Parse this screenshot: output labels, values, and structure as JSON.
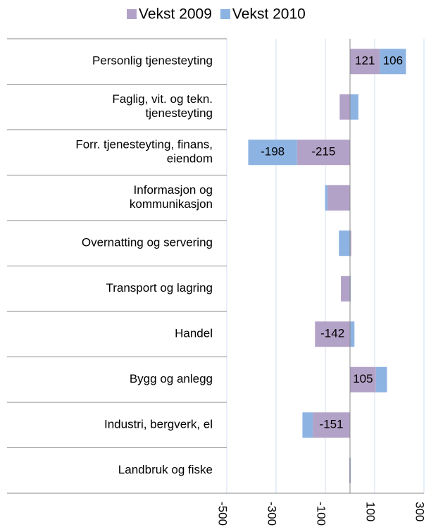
{
  "chart_data": {
    "type": "bar",
    "orientation": "horizontal",
    "stacked": true,
    "categories": [
      "Personlig tjenesteyting",
      "Faglig, vit. og tekn.\ntjenesteyting",
      "Forr. tjenesteyting, finans,\neiendom",
      "Informasjon og\nkommunikasjon",
      "Overnatting og servering",
      "Transport og lagring",
      "Handel",
      "Bygg og anlegg",
      "Industri, bergverk, el",
      "Landbruk og fiske"
    ],
    "series": [
      {
        "name": "Vekst 2009",
        "color": "#b3a2c7",
        "values": [
          121,
          -42,
          -215,
          -91,
          5,
          -37,
          -142,
          105,
          -151,
          -3
        ],
        "value_labels": [
          "121",
          null,
          "-215",
          null,
          null,
          null,
          "-142",
          "105",
          "-151",
          null
        ]
      },
      {
        "name": "Vekst 2010",
        "color": "#8db3e2",
        "values": [
          106,
          34,
          -198,
          -10,
          -45,
          3,
          18,
          45,
          -42,
          3
        ],
        "value_labels": [
          "106",
          null,
          "-198",
          null,
          null,
          null,
          null,
          null,
          null,
          null
        ]
      }
    ],
    "xlim": [
      -500,
      300
    ],
    "xticks": [
      -500,
      -300,
      -100,
      100,
      300
    ],
    "grid": true,
    "legend": "top"
  }
}
